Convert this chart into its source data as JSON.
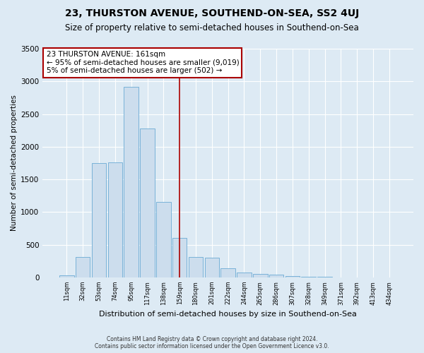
{
  "title": "23, THURSTON AVENUE, SOUTHEND-ON-SEA, SS2 4UJ",
  "subtitle": "Size of property relative to semi-detached houses in Southend-on-Sea",
  "xlabel": "Distribution of semi-detached houses by size in Southend-on-Sea",
  "ylabel": "Number of semi-detached properties",
  "footer_line1": "Contains HM Land Registry data © Crown copyright and database right 2024.",
  "footer_line2": "Contains public sector information licensed under the Open Government Licence v3.0.",
  "annotation_line1": "23 THURSTON AVENUE: 161sqm",
  "annotation_line2": "← 95% of semi-detached houses are smaller (9,019)",
  "annotation_line3": "5% of semi-detached houses are larger (502) →",
  "bar_labels": [
    "11sqm",
    "32sqm",
    "53sqm",
    "74sqm",
    "95sqm",
    "117sqm",
    "138sqm",
    "159sqm",
    "180sqm",
    "201sqm",
    "222sqm",
    "244sqm",
    "265sqm",
    "286sqm",
    "307sqm",
    "328sqm",
    "349sqm",
    "371sqm",
    "392sqm",
    "413sqm",
    "434sqm"
  ],
  "bar_values": [
    30,
    310,
    1750,
    1760,
    2920,
    2280,
    1160,
    600,
    310,
    300,
    140,
    75,
    55,
    45,
    25,
    10,
    5,
    3,
    2,
    1,
    1
  ],
  "bar_color": "#ccdded",
  "bar_edgecolor": "#6aaad4",
  "vline_x_index": 7,
  "vline_color": "#aa0000",
  "ylim": [
    0,
    3500
  ],
  "yticks": [
    0,
    500,
    1000,
    1500,
    2000,
    2500,
    3000,
    3500
  ],
  "bg_color": "#ddeaf4",
  "plot_bg_color": "#ddeaf4",
  "grid_color": "#ffffff",
  "title_fontsize": 10,
  "subtitle_fontsize": 8.5,
  "xlabel_fontsize": 8,
  "ylabel_fontsize": 7.5,
  "annotation_box_edgecolor": "#aa0000",
  "annotation_fontsize": 7.5,
  "footer_fontsize": 5.5
}
